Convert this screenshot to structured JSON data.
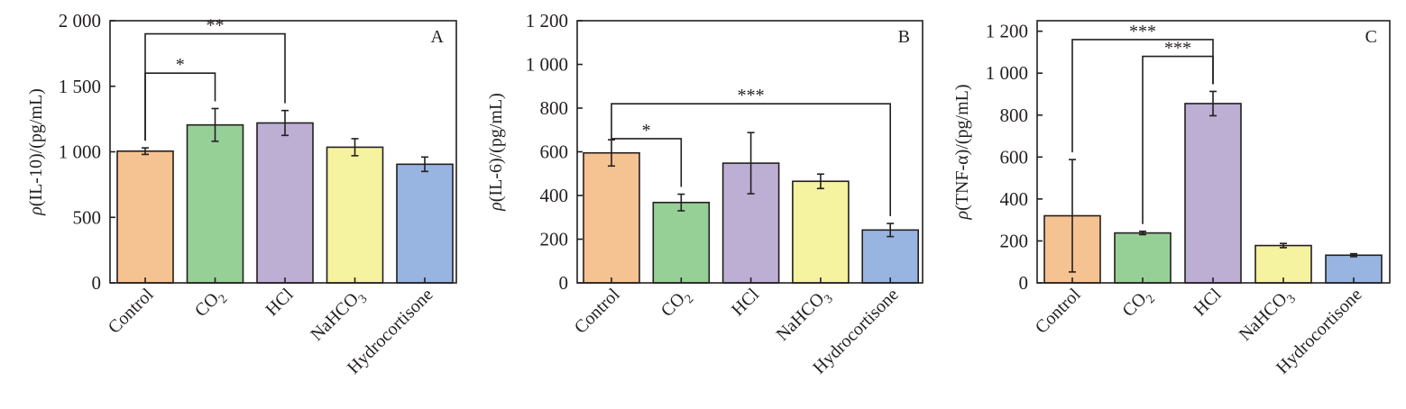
{
  "chart_data": [
    {
      "type": "bar",
      "panel_label": "A",
      "ylabel": {
        "rho": "ρ",
        "rest": "(IL-10)/(pg/mL)"
      },
      "ylim": [
        0,
        2000
      ],
      "yticks": [
        0,
        500,
        1000,
        1500,
        2000
      ],
      "ytick_labels": [
        "0",
        "500",
        "1 000",
        "1 500",
        "2 000"
      ],
      "categories": [
        "Control",
        "CO2",
        "HCl",
        "NaHCO3",
        "Hydrocortisone"
      ],
      "category_labels": [
        {
          "base": "Control",
          "sub": ""
        },
        {
          "base": "CO",
          "sub": "2"
        },
        {
          "base": "HCl",
          "sub": ""
        },
        {
          "base": "NaHCO",
          "sub": "3"
        },
        {
          "base": "Hydrocortisone",
          "sub": ""
        }
      ],
      "values": [
        1005,
        1205,
        1220,
        1035,
        905
      ],
      "errors": [
        25,
        125,
        95,
        65,
        55
      ],
      "colors": [
        "#f5c291",
        "#97d097",
        "#bdaed4",
        "#f5f2a0",
        "#98b4e0"
      ],
      "significance": [
        {
          "from": 0,
          "to": 1,
          "level": 1.6,
          "label": "*"
        },
        {
          "from": 0,
          "to": 2,
          "level": 1.9,
          "label": "**"
        }
      ]
    },
    {
      "type": "bar",
      "panel_label": "B",
      "ylabel": {
        "rho": "ρ",
        "rest": "(IL-6)/(pg/mL)"
      },
      "ylim": [
        0,
        1200
      ],
      "yticks": [
        0,
        200,
        400,
        600,
        800,
        1000,
        1200
      ],
      "ytick_labels": [
        "0",
        "200",
        "400",
        "600",
        "800",
        "1 000",
        "1 200"
      ],
      "categories": [
        "Control",
        "CO2",
        "HCl",
        "NaHCO3",
        "Hydrocortisone"
      ],
      "category_labels": [
        {
          "base": "Control",
          "sub": ""
        },
        {
          "base": "CO",
          "sub": "2"
        },
        {
          "base": "HCl",
          "sub": ""
        },
        {
          "base": "NaHCO",
          "sub": "3"
        },
        {
          "base": "Hydrocortisone",
          "sub": ""
        }
      ],
      "values": [
        595,
        368,
        548,
        465,
        242
      ],
      "errors": [
        60,
        38,
        140,
        33,
        30
      ],
      "colors": [
        "#f5c291",
        "#97d097",
        "#bdaed4",
        "#f5f2a0",
        "#98b4e0"
      ],
      "significance": [
        {
          "from": 0,
          "to": 1,
          "level": 0.66,
          "label": "*"
        },
        {
          "from": 0,
          "to": 4,
          "level": 0.82,
          "label": "***"
        }
      ]
    },
    {
      "type": "bar",
      "panel_label": "C",
      "ylabel": {
        "rho": "ρ",
        "rest": "(TNF-α)/(pg/mL)"
      },
      "ylim": [
        0,
        1250
      ],
      "yticks": [
        0,
        200,
        400,
        600,
        800,
        1000,
        1200
      ],
      "ytick_labels": [
        "0",
        "200",
        "400",
        "600",
        "800",
        "1 000",
        "1 200"
      ],
      "categories": [
        "Control",
        "CO2",
        "HCl",
        "NaHCO3",
        "Hydrocortisone"
      ],
      "category_labels": [
        {
          "base": "Control",
          "sub": ""
        },
        {
          "base": "CO",
          "sub": "2"
        },
        {
          "base": "HCl",
          "sub": ""
        },
        {
          "base": "NaHCO",
          "sub": "3"
        },
        {
          "base": "Hydrocortisone",
          "sub": ""
        }
      ],
      "values": [
        320,
        238,
        855,
        178,
        132
      ],
      "errors": [
        268,
        8,
        58,
        10,
        7
      ],
      "colors": [
        "#f5c291",
        "#97d097",
        "#bdaed4",
        "#f5f2a0",
        "#98b4e0"
      ],
      "significance": [
        {
          "from": 0,
          "to": 2,
          "level": 1.16,
          "label": "***"
        },
        {
          "from": 1,
          "to": 2,
          "level": 1.08,
          "label": "***"
        }
      ]
    }
  ]
}
